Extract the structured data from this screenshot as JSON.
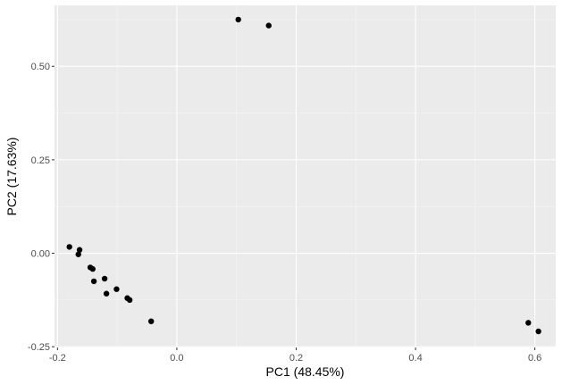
{
  "chart_data": {
    "type": "scatter",
    "xlabel": "PC1 (48.45%)",
    "ylabel": "PC2 (17.63%)",
    "xlim": [
      -0.205,
      0.635
    ],
    "ylim": [
      -0.252,
      0.663
    ],
    "x_ticks": [
      -0.2,
      0.0,
      0.2,
      0.4,
      0.6
    ],
    "x_tick_labels": [
      "-0.2",
      "0.0",
      "0.2",
      "0.4",
      "0.6"
    ],
    "y_ticks": [
      -0.25,
      0.0,
      0.25,
      0.5
    ],
    "y_tick_labels": [
      "-0.25",
      "0.00",
      "0.25",
      "0.50"
    ],
    "grid": true,
    "series": [
      {
        "points": [
          {
            "x": -0.18,
            "y": 0.017
          },
          {
            "x": -0.163,
            "y": 0.009
          },
          {
            "x": -0.165,
            "y": -0.003
          },
          {
            "x": -0.145,
            "y": -0.038
          },
          {
            "x": -0.141,
            "y": -0.042
          },
          {
            "x": -0.139,
            "y": -0.075
          },
          {
            "x": -0.121,
            "y": -0.068
          },
          {
            "x": -0.118,
            "y": -0.108
          },
          {
            "x": -0.101,
            "y": -0.096
          },
          {
            "x": -0.083,
            "y": -0.12
          },
          {
            "x": -0.079,
            "y": -0.125
          },
          {
            "x": -0.043,
            "y": -0.182
          },
          {
            "x": 0.103,
            "y": 0.625
          },
          {
            "x": 0.154,
            "y": 0.609
          },
          {
            "x": 0.589,
            "y": -0.186
          },
          {
            "x": 0.606,
            "y": -0.209
          }
        ]
      }
    ]
  },
  "colors": {
    "panel": "#ebebeb",
    "grid_major": "#ffffff",
    "grid_minor": "#f5f5f5",
    "point": "#000000",
    "tick": "#333333"
  }
}
